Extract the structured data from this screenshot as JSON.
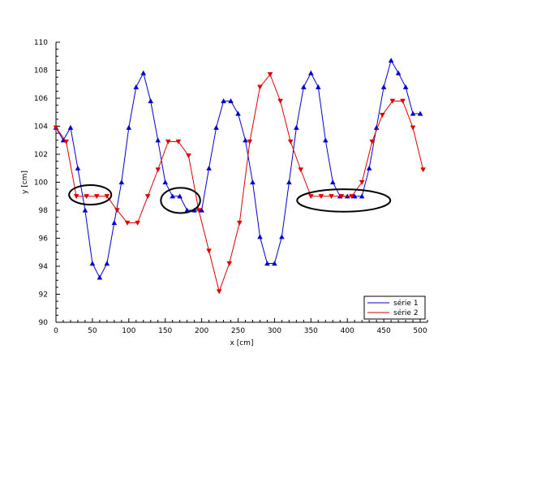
{
  "chart_data": {
    "type": "line",
    "title": "",
    "xlabel": "x [cm]",
    "ylabel": "y [cm]",
    "xlim": [
      0,
      510
    ],
    "ylim": [
      90,
      110
    ],
    "xticks": [
      0,
      50,
      100,
      150,
      200,
      250,
      300,
      350,
      400,
      450,
      500
    ],
    "yticks": [
      90,
      92,
      94,
      96,
      98,
      100,
      102,
      104,
      106,
      108,
      110
    ],
    "grid": false,
    "legend_position": "bottom-right",
    "series": [
      {
        "name": "série 1",
        "color": "#0000cc",
        "marker": "triangle-up",
        "x": [
          0,
          10,
          20,
          30,
          40,
          50,
          60,
          70,
          80,
          90,
          100,
          110,
          120,
          130,
          140,
          150,
          160,
          170,
          180,
          190,
          200,
          210,
          220,
          230,
          240,
          250,
          260,
          270,
          280,
          290,
          300,
          310,
          320,
          330,
          340,
          350,
          360,
          370,
          380,
          390,
          400,
          410,
          420,
          430,
          440,
          450,
          460,
          470,
          480,
          490,
          500
        ],
        "y": [
          103.9,
          103.0,
          103.9,
          101.0,
          98.0,
          94.2,
          93.2,
          94.2,
          97.1,
          100.0,
          103.9,
          106.8,
          107.8,
          105.8,
          103.0,
          100.0,
          99.0,
          99.0,
          98.0,
          98.0,
          98.0,
          101.0,
          103.9,
          105.8,
          105.8,
          104.9,
          103.0,
          100.0,
          96.1,
          94.2,
          94.2,
          96.1,
          100.0,
          103.9,
          106.8,
          107.8,
          106.8,
          103.0,
          100.0,
          99.0,
          99.0,
          99.0,
          99.0,
          101.0,
          103.9,
          106.8,
          108.7,
          107.8,
          106.8,
          104.9,
          104.9
        ]
      },
      {
        "name": "série 2",
        "color": "#dd0000",
        "marker": "triangle-down",
        "x": [
          0,
          14,
          28,
          42,
          56,
          70,
          84,
          98,
          112,
          126,
          140,
          154,
          168,
          182,
          196,
          210,
          224,
          238,
          252,
          266,
          280,
          294,
          308,
          322,
          336,
          350,
          364,
          378,
          392,
          406,
          420,
          434,
          448,
          462,
          476,
          490,
          504
        ],
        "y": [
          103.9,
          102.9,
          99.0,
          99.0,
          99.0,
          99.0,
          98.0,
          97.1,
          97.1,
          99.0,
          100.9,
          102.9,
          102.9,
          101.9,
          98.0,
          95.1,
          92.2,
          94.2,
          97.1,
          102.9,
          106.8,
          107.7,
          105.8,
          102.9,
          100.9,
          99.0,
          99.0,
          99.0,
          99.0,
          99.0,
          100.0,
          102.9,
          104.8,
          105.8,
          105.8,
          103.9,
          100.9
        ]
      }
    ],
    "annotations": [
      {
        "shape": "ellipse",
        "cx": 47,
        "cy": 99.1,
        "rx": 29,
        "ry": 0.7
      },
      {
        "shape": "ellipse",
        "cx": 171,
        "cy": 98.7,
        "rx": 27,
        "ry": 0.9
      },
      {
        "shape": "ellipse",
        "cx": 395,
        "cy": 98.7,
        "rx": 64,
        "ry": 0.8
      }
    ]
  }
}
